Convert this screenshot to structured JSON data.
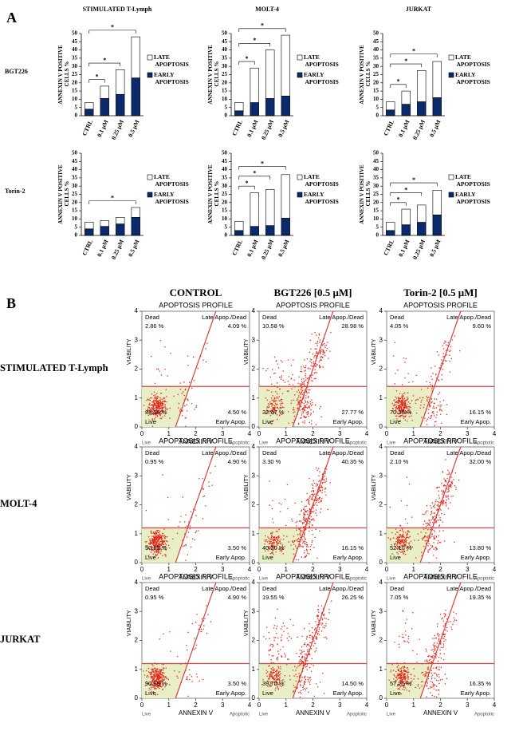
{
  "panel_a": {
    "label": "A",
    "columns": [
      "STIMULATED T-Lymph",
      "MOLT-4",
      "JURKAT"
    ],
    "rows": [
      "BGT226",
      "Torin-2"
    ]
  },
  "chart_data": [
    {
      "type": "bar",
      "stacked": true,
      "y_label": "ANNEXIN V POSITIVE CELLS %",
      "categories": [
        "CTRL",
        "0.1 μM",
        "0.25 μM",
        "0.5 μM"
      ],
      "series": [
        {
          "name": "EARLY APOPTOSIS",
          "color": "#0b2a6b",
          "values": [
            4,
            10.5,
            13,
            23
          ]
        },
        {
          "name": "LATE APOPTOSIS",
          "color": "#ffffff",
          "values": [
            4,
            7.5,
            15,
            25
          ]
        }
      ],
      "ylim": [
        0,
        50
      ],
      "yticks": [
        0,
        5,
        10,
        15,
        20,
        25,
        30,
        35,
        40,
        45,
        50
      ],
      "significance": [
        {
          "from": 0,
          "to": 1,
          "label": "*"
        },
        {
          "from": 0,
          "to": 2,
          "label": "*"
        },
        {
          "from": 0,
          "to": 3,
          "label": "*"
        }
      ]
    },
    {
      "type": "bar",
      "stacked": true,
      "y_label": "ANNEXIN V POSITIVE CELLS %",
      "categories": [
        "CTRL",
        "0.1 μM",
        "0.25 μM",
        "0.5 μM"
      ],
      "series": [
        {
          "name": "EARLY APOPTOSIS",
          "color": "#0b2a6b",
          "values": [
            3,
            8,
            10.5,
            12
          ]
        },
        {
          "name": "LATE APOPTOSIS",
          "color": "#ffffff",
          "values": [
            5,
            21,
            29.5,
            37
          ]
        }
      ],
      "ylim": [
        0,
        50
      ],
      "yticks": [
        0,
        5,
        10,
        15,
        20,
        25,
        30,
        35,
        40,
        45,
        50
      ],
      "significance": [
        {
          "from": 0,
          "to": 1,
          "label": "*"
        },
        {
          "from": 0,
          "to": 2,
          "label": "*"
        },
        {
          "from": 0,
          "to": 3,
          "label": "*"
        }
      ]
    },
    {
      "type": "bar",
      "stacked": true,
      "y_label": "ANNEXIN V POSITIVE CELLS %",
      "categories": [
        "CTRL",
        "0.1 μM",
        "0.25 μM",
        "0.5 μM"
      ],
      "series": [
        {
          "name": "EARLY APOPTOSIS",
          "color": "#0b2a6b",
          "values": [
            3.5,
            7,
            8.5,
            11
          ]
        },
        {
          "name": "LATE APOPTOSIS",
          "color": "#ffffff",
          "values": [
            5,
            8,
            19,
            22
          ]
        }
      ],
      "ylim": [
        0,
        50
      ],
      "yticks": [
        0,
        5,
        10,
        15,
        20,
        25,
        30,
        35,
        40,
        45,
        50
      ],
      "significance": [
        {
          "from": 0,
          "to": 1,
          "label": "*"
        },
        {
          "from": 0,
          "to": 2,
          "label": "*"
        },
        {
          "from": 0,
          "to": 3,
          "label": "*"
        }
      ]
    },
    {
      "type": "bar",
      "stacked": true,
      "y_label": "ANNEXIN V POSITIVE CELLS %",
      "categories": [
        "CTRL",
        "0.1 μM",
        "0.25 μM",
        "0.5 μM"
      ],
      "series": [
        {
          "name": "EARLY APOPTOSIS",
          "color": "#0b2a6b",
          "values": [
            4,
            5.5,
            7,
            11
          ]
        },
        {
          "name": "LATE APOPTOSIS",
          "color": "#ffffff",
          "values": [
            4,
            3.5,
            4,
            6
          ]
        }
      ],
      "ylim": [
        0,
        50
      ],
      "yticks": [
        0,
        5,
        10,
        15,
        20,
        25,
        30,
        35,
        40,
        45,
        50
      ],
      "significance": [
        {
          "from": 0,
          "to": 3,
          "label": "*"
        }
      ]
    },
    {
      "type": "bar",
      "stacked": true,
      "y_label": "ANNEXIN V POSITIVE CELLS %",
      "categories": [
        "CTRL",
        "0.1 μM",
        "0.25 μM",
        "0.5 μM"
      ],
      "series": [
        {
          "name": "EARLY APOPTOSIS",
          "color": "#0b2a6b",
          "values": [
            3,
            5.5,
            6,
            10.5
          ]
        },
        {
          "name": "LATE APOPTOSIS",
          "color": "#ffffff",
          "values": [
            5.5,
            20.5,
            22,
            26.5
          ]
        }
      ],
      "ylim": [
        0,
        50
      ],
      "yticks": [
        0,
        5,
        10,
        15,
        20,
        25,
        30,
        35,
        40,
        45,
        50
      ],
      "significance": [
        {
          "from": 0,
          "to": 1,
          "label": "*"
        },
        {
          "from": 0,
          "to": 2,
          "label": "*"
        },
        {
          "from": 0,
          "to": 3,
          "label": "*"
        }
      ]
    },
    {
      "type": "bar",
      "stacked": true,
      "y_label": "ANNEXIN V POSITIVE CELLS %",
      "categories": [
        "CTRL",
        "0.1 μM",
        "0.25 μM",
        "0.5 μM"
      ],
      "series": [
        {
          "name": "EARLY APOPTOSIS",
          "color": "#0b2a6b",
          "values": [
            3,
            6.5,
            8,
            12.5
          ]
        },
        {
          "name": "LATE APOPTOSIS",
          "color": "#ffffff",
          "values": [
            5,
            9.5,
            10.5,
            15
          ]
        }
      ],
      "ylim": [
        0,
        50
      ],
      "yticks": [
        0,
        5,
        10,
        15,
        20,
        25,
        30,
        35,
        40,
        45,
        50
      ],
      "significance": [
        {
          "from": 0,
          "to": 1,
          "label": "*"
        },
        {
          "from": 0,
          "to": 2,
          "label": "*"
        },
        {
          "from": 0,
          "to": 3,
          "label": "*"
        }
      ]
    }
  ],
  "panel_b": {
    "label": "B",
    "columns": [
      "CONTROL",
      "BGT226  [0.5 μM]",
      "Torin-2  [0.5 μM]"
    ],
    "rows": [
      "STIMULATED T-Lymph",
      "MOLT-4",
      "JURKAT"
    ],
    "plot_title": "APOPTOSIS PROFILE",
    "quadrants": {
      "dead": "Dead",
      "late": "Late Apop./Dead",
      "live": "Live",
      "early": "Early Apop."
    },
    "x_label": "ANNEXIN V",
    "x_left": "Live",
    "x_right": "Apoptotic",
    "y_label": "VIABILITY",
    "xlim": [
      0,
      4
    ],
    "ylim": [
      0,
      4
    ],
    "xticks": [
      0,
      1,
      2,
      3,
      4
    ],
    "yticks": [
      0,
      1,
      2,
      3,
      4
    ],
    "plots": [
      [
        {
          "dead": "2.86 %",
          "late": "4.09 %",
          "live": "88.55 %",
          "early": "4.50 %"
        },
        {
          "dead": "10.58 %",
          "late": "28.98 %",
          "live": "32.67 %",
          "early": "27.77 %"
        },
        {
          "dead": "4.05 %",
          "late": "9.60 %",
          "live": "70.20 %",
          "early": "16.15 %"
        }
      ],
      [
        {
          "dead": "0.95 %",
          "late": "4.90 %",
          "live": "90.65 %",
          "early": "3.50 %"
        },
        {
          "dead": "3.30 %",
          "late": "40.35 %",
          "live": "40.20 %",
          "early": "16.15 %"
        },
        {
          "dead": "2.10 %",
          "late": "32.00 %",
          "live": "52.10 %",
          "early": "13.80 %"
        }
      ],
      [
        {
          "dead": "0.95 %",
          "late": "4.90 %",
          "live": "90.65 %",
          "early": "3.50 %"
        },
        {
          "dead": "19.55 %",
          "late": "26.25 %",
          "live": "39.70 %",
          "early": "14.50 %"
        },
        {
          "dead": "7.05 %",
          "late": "19.35 %",
          "live": "57.25 %",
          "early": "16.35 %"
        }
      ]
    ]
  }
}
